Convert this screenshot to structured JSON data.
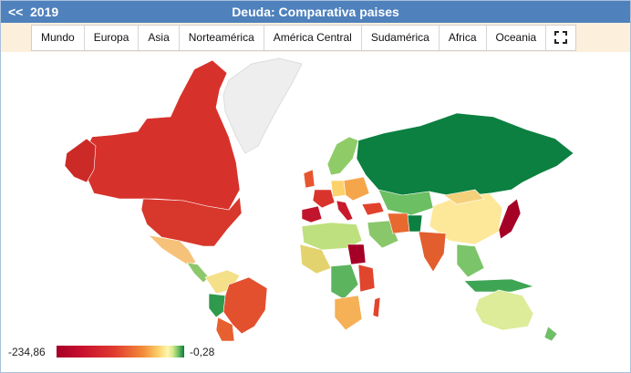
{
  "header": {
    "back_label": "<<",
    "year": "2019",
    "title": "Deuda: Comparativa paises"
  },
  "tabs": [
    {
      "label": "Mundo"
    },
    {
      "label": "Europa"
    },
    {
      "label": "Asia"
    },
    {
      "label": "Norteamérica"
    },
    {
      "label": "América Central"
    },
    {
      "label": "Sudamérica"
    },
    {
      "label": "Africa"
    },
    {
      "label": "Oceania"
    }
  ],
  "fullscreen_icon": "expand-icon",
  "legend": {
    "min": "-234,86",
    "max": "-0,28"
  },
  "colors": {
    "header_bg": "#4f81bd",
    "tabbar_bg": "#fcefdc",
    "low": "#a50026",
    "mid": "#fff5b0",
    "high": "#0a7d3b",
    "no_data": "#eeeeee"
  }
}
